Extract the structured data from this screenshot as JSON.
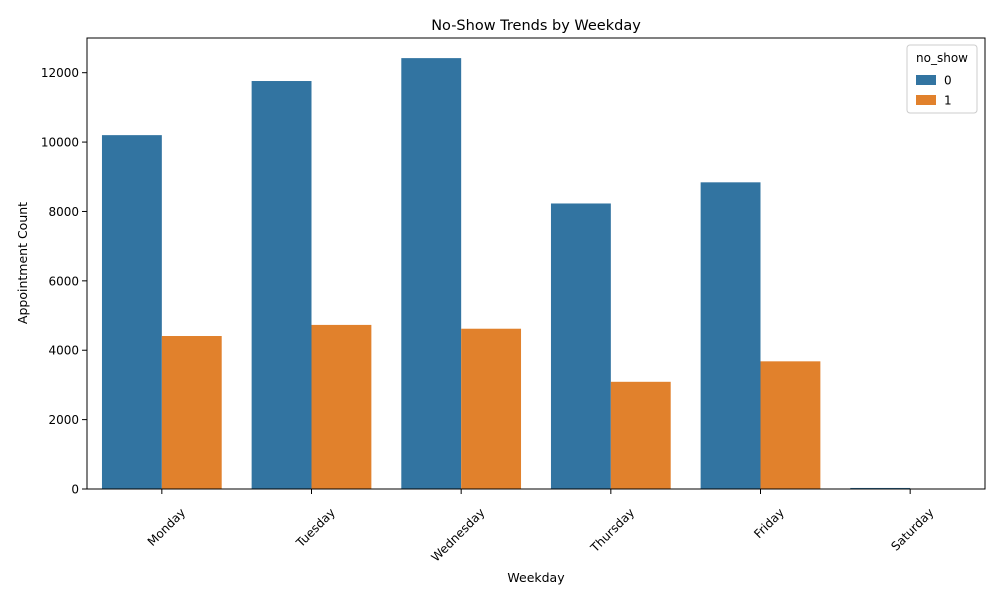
{
  "chart_data": {
    "type": "bar",
    "title": "No-Show Trends by Weekday",
    "xlabel": "Weekday",
    "ylabel": "Appointment Count",
    "categories": [
      "Monday",
      "Tuesday",
      "Wednesday",
      "Thursday",
      "Friday",
      "Saturday"
    ],
    "series": [
      {
        "name": "0",
        "color": "#3274a1",
        "values": [
          10200,
          11760,
          12420,
          8230,
          8840,
          30
        ]
      },
      {
        "name": "1",
        "color": "#e1812c",
        "values": [
          4410,
          4730,
          4620,
          3090,
          3680,
          9
        ]
      }
    ],
    "ylim": [
      0,
      13000
    ],
    "yticks": [
      0,
      2000,
      4000,
      6000,
      8000,
      10000,
      12000
    ],
    "legend": {
      "title": "no_show",
      "position": "top-right"
    },
    "grid": false
  }
}
